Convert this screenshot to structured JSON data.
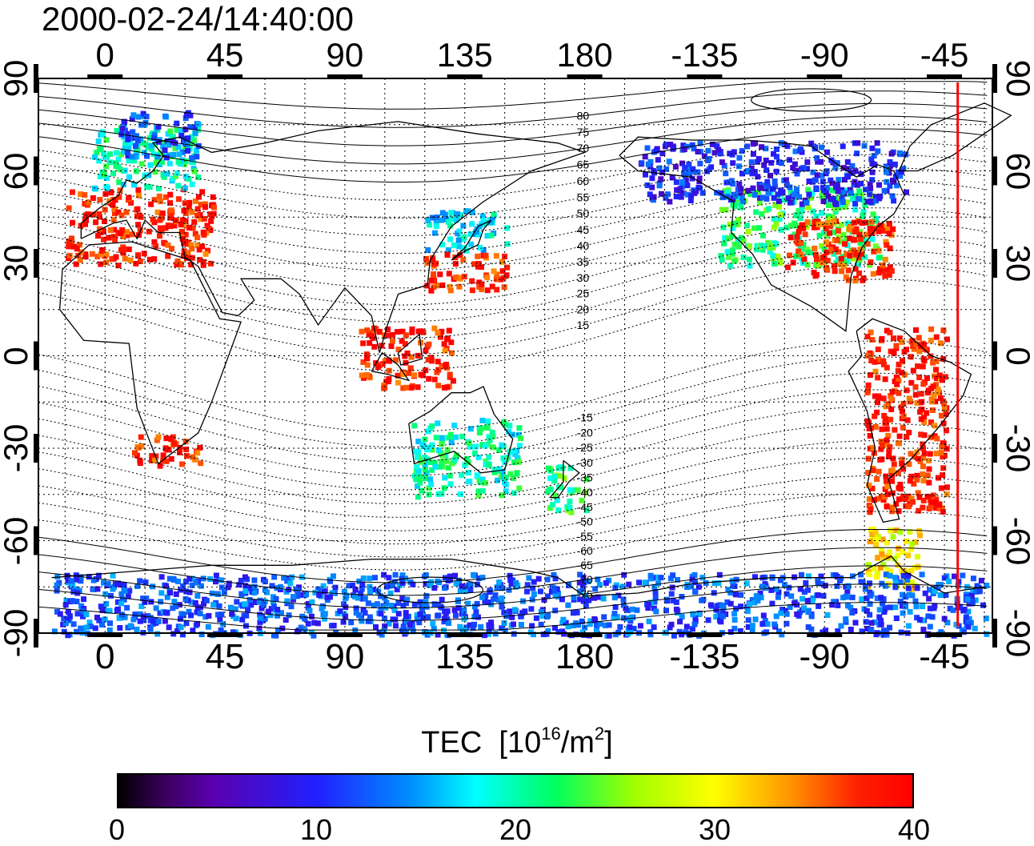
{
  "title": "2000-02-24/14:40:00",
  "axes": {
    "x_ticks_top": [
      "0",
      "45",
      "90",
      "135",
      "180",
      "-135",
      "-90",
      "-45"
    ],
    "x_ticks_bottom": [
      "0",
      "45",
      "90",
      "135",
      "180",
      "-135",
      "-90",
      "-45"
    ],
    "y_ticks_left": [
      "90",
      "60",
      "30",
      "0",
      "-30",
      "-60",
      "-90"
    ],
    "y_ticks_right": [
      "90",
      "60",
      "30",
      "0",
      "-30",
      "-60",
      "-90"
    ],
    "x_values": [
      0,
      45,
      90,
      135,
      180,
      225,
      270,
      315
    ],
    "y_values": [
      90,
      60,
      30,
      0,
      -30,
      -60,
      -90
    ],
    "lon_range": [
      -25,
      333
    ],
    "lat_range": [
      -90,
      90
    ],
    "grid": "dotted"
  },
  "contour_labels": {
    "north": [
      "80",
      "75",
      "70",
      "65",
      "60",
      "55",
      "50",
      "45",
      "40",
      "35",
      "30",
      "25",
      "20",
      "15"
    ],
    "south": [
      "-15",
      "-20",
      "-25",
      "-30",
      "-35",
      "-40",
      "-45",
      "-50",
      "-55",
      "-60",
      "-65",
      "-70",
      "-75"
    ],
    "north_lats": [
      80,
      75,
      70,
      65,
      60,
      55,
      50,
      45,
      40,
      35,
      30,
      25,
      20,
      15
    ],
    "south_lats": [
      -15,
      -20,
      -25,
      -30,
      -35,
      -40,
      -45,
      -50,
      -55,
      -60,
      -65,
      -70,
      -75
    ],
    "lon": 180
  },
  "terminator": {
    "lon": 320,
    "color": "#ff0000"
  },
  "colorbar": {
    "title": "TEC",
    "unit_base": "[10",
    "unit_exp": "16",
    "unit_mid": "/m",
    "unit_exp2": "2",
    "unit_end": "]",
    "ticks": [
      "0",
      "10",
      "20",
      "30",
      "40"
    ],
    "tick_values": [
      0,
      10,
      20,
      30,
      40
    ],
    "range": [
      0,
      40
    ],
    "colormap": "black-purple-blue-cyan-green-yellow-red"
  },
  "tec_regions": [
    {
      "region": "europe",
      "lon": [
        -15,
        40
      ],
      "lat": [
        30,
        55
      ],
      "tec": 38
    },
    {
      "region": "north-europe",
      "lon": [
        -5,
        35
      ],
      "lat": [
        55,
        75
      ],
      "tec": 20
    },
    {
      "region": "scandinavia",
      "lon": [
        5,
        35
      ],
      "lat": [
        65,
        80
      ],
      "tec": 12
    },
    {
      "region": "east-asia-north",
      "lon": [
        120,
        150
      ],
      "lat": [
        35,
        48
      ],
      "tec": 17
    },
    {
      "region": "east-asia-south",
      "lon": [
        118,
        150
      ],
      "lat": [
        22,
        34
      ],
      "tec": 38
    },
    {
      "region": "north-america",
      "lon": [
        230,
        290
      ],
      "lat": [
        30,
        55
      ],
      "tec": 22
    },
    {
      "region": "north-america-east",
      "lon": [
        255,
        295
      ],
      "lat": [
        25,
        45
      ],
      "tec": 38
    },
    {
      "region": "canada",
      "lon": [
        200,
        300
      ],
      "lat": [
        50,
        70
      ],
      "tec": 10
    },
    {
      "region": "south-america",
      "lon": [
        285,
        315
      ],
      "lat": [
        -50,
        10
      ],
      "tec": 38
    },
    {
      "region": "south-america-tip",
      "lon": [
        285,
        305
      ],
      "lat": [
        -75,
        -55
      ],
      "tec": 30
    },
    {
      "region": "australia",
      "lon": [
        115,
        155
      ],
      "lat": [
        -45,
        -20
      ],
      "tec": 20
    },
    {
      "region": "new-zealand",
      "lon": [
        165,
        180
      ],
      "lat": [
        -50,
        -35
      ],
      "tec": 22
    },
    {
      "region": "south-africa",
      "lon": [
        10,
        35
      ],
      "lat": [
        -35,
        -25
      ],
      "tec": 38
    },
    {
      "region": "southeast-asia",
      "lon": [
        95,
        130
      ],
      "lat": [
        -10,
        10
      ],
      "tec": 38
    },
    {
      "region": "antarctic-band",
      "lon": [
        -20,
        330
      ],
      "lat": [
        -90,
        -70
      ],
      "tec": 12
    }
  ]
}
